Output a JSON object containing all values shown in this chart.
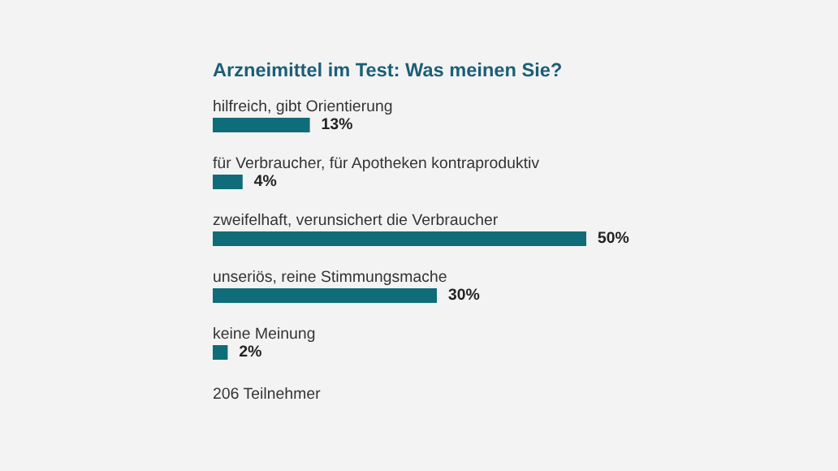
{
  "chart_data": {
    "type": "bar",
    "orientation": "horizontal",
    "title": "Arzneimittel im Test: Was meinen Sie?",
    "categories": [
      "hilfreich, gibt Orientierung",
      "für Verbraucher, für Apotheken kontraproduktiv",
      "zweifelhaft, verunsichert die Verbraucher",
      "unseriös, reine Stimmungsmache",
      "keine Meinung"
    ],
    "values": [
      13,
      4,
      50,
      30,
      2
    ],
    "value_labels": [
      "13%",
      "4%",
      "50%",
      "30%",
      "2%"
    ],
    "color": "#0e6d78",
    "annotations": [
      "206 Teilnehmer"
    ]
  }
}
